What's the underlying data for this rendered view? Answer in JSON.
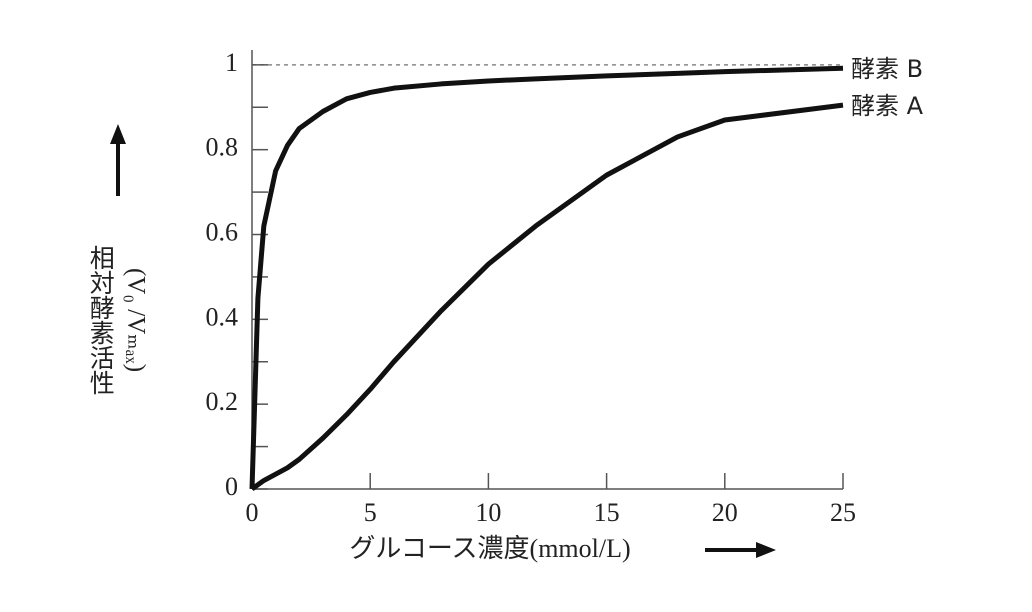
{
  "chart_data": {
    "type": "line",
    "x_label": "グルコース濃度(mmol/L)",
    "y_label": "相対酵素活性",
    "y_label_unit": "(V₀ /Vₘₐₓ)",
    "x": [
      0,
      0.25,
      0.5,
      1,
      1.5,
      2,
      3,
      4,
      5,
      6,
      8,
      10,
      12,
      15,
      18,
      20,
      25
    ],
    "series": [
      {
        "name": "酵素 B",
        "color": "#111111",
        "values": [
          0,
          0.45,
          0.62,
          0.75,
          0.81,
          0.85,
          0.89,
          0.92,
          0.935,
          0.945,
          0.955,
          0.962,
          0.967,
          0.974,
          0.98,
          0.984,
          0.992
        ]
      },
      {
        "name": "酵素 A",
        "color": "#111111",
        "values": [
          0,
          0.01,
          0.02,
          0.035,
          0.05,
          0.07,
          0.12,
          0.175,
          0.235,
          0.3,
          0.42,
          0.53,
          0.62,
          0.74,
          0.83,
          0.87,
          0.905
        ]
      }
    ],
    "xlim": [
      0,
      25
    ],
    "xticks": [
      0,
      5,
      10,
      15,
      20,
      25
    ],
    "ylim": [
      0,
      1.035
    ],
    "yticks": [
      0,
      0.2,
      0.4,
      0.6,
      0.8,
      1
    ],
    "yticks_minor": [
      0.1,
      0.3,
      0.5,
      0.7,
      0.9
    ],
    "reference_line": 1
  }
}
